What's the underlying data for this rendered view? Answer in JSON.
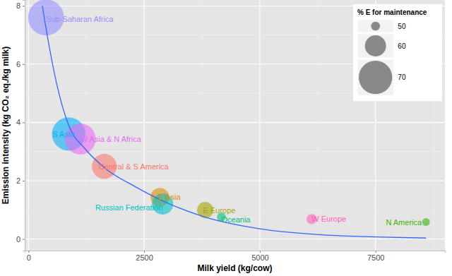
{
  "chart_data": {
    "type": "scatter",
    "x_label": "Milk yield (kg/cow)",
    "y_label": "Emission intensity (kg CO₂ eq./kg milk)",
    "xlim": [
      -80,
      9000
    ],
    "ylim": [
      -0.4,
      8.2
    ],
    "xticks": [
      0,
      2500,
      5000,
      7500
    ],
    "yticks": [
      0,
      2,
      4,
      6,
      8
    ],
    "xminor": [
      1250,
      3750,
      6250,
      8750
    ],
    "yminor": [
      1,
      3,
      5,
      7
    ],
    "grid": true,
    "legend": "top-right",
    "size_legend": {
      "title": "% E for maintenance",
      "values": [
        50,
        60,
        70
      ]
    },
    "series": [
      {
        "type": "scatter",
        "marker": "circle",
        "labels": [
          "Sub-Saharan Africa",
          "S Asia",
          "W Asia & N Africa",
          "Central & S America",
          "E Asia",
          "Russian Federation",
          "E Europe",
          "Oceania",
          "W Europe",
          "N America"
        ],
        "x": [
          380,
          870,
          1120,
          1640,
          2840,
          2900,
          3820,
          4170,
          6120,
          8590
        ],
        "values": [
          7.6,
          3.6,
          3.43,
          2.49,
          1.43,
          1.2,
          0.99,
          0.75,
          0.68,
          0.58
        ],
        "size": [
          72,
          70,
          68,
          63,
          58,
          60,
          56,
          50,
          51,
          49
        ],
        "colors": [
          "#9590FF",
          "#00B0F6",
          "#E76BF3",
          "#F8766D",
          "#D89000",
          "#00BFC4",
          "#A3A500",
          "#00BF7D",
          "#FF62BC",
          "#39B600"
        ]
      },
      {
        "type": "line",
        "line_style": "solid",
        "color": "#3366FF",
        "x": [
          300,
          450,
          600,
          870,
          1220,
          1680,
          2300,
          2840,
          3820,
          5000,
          6270,
          7500,
          8590
        ],
        "values": [
          8.0,
          6.6,
          5.4,
          3.9,
          3.1,
          2.4,
          1.8,
          1.35,
          0.75,
          0.35,
          0.15,
          0.07,
          0.03
        ]
      }
    ]
  }
}
